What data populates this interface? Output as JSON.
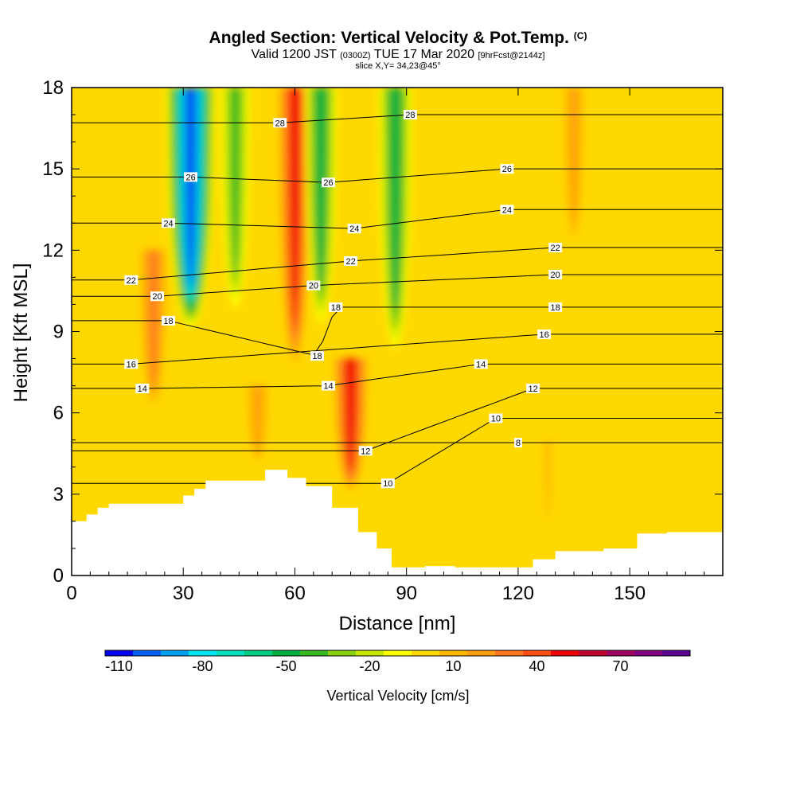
{
  "header": {
    "title": "Angled Section: Vertical Velocity & Pot.Temp.",
    "title_unit": "(C)",
    "valid_prefix": "Valid 1200 JST",
    "valid_utc": "(0300Z)",
    "valid_date": "TUE 17 Mar 2020",
    "forecast_tag": "[9hrFcst@2144z]",
    "slice": "slice X,Y= 34,23@45°"
  },
  "colors": {
    "terrain": "#ffffff",
    "contour_line": "#000000",
    "scale": [
      "#0000ee",
      "#005ef0",
      "#00a0f0",
      "#00e6f0",
      "#00e0c0",
      "#00cc80",
      "#00b040",
      "#38b820",
      "#88d010",
      "#c8e800",
      "#ffff00",
      "#ffd800",
      "#ffb800",
      "#ff9c10",
      "#ff7820",
      "#ff4c10",
      "#ee0000",
      "#c00030",
      "#a00060",
      "#800080",
      "#5a0090"
    ]
  },
  "chart_data": {
    "type": "heatmap",
    "title": "Angled Section: Vertical Velocity & Pot.Temp.",
    "xlabel": "Distance [nm]",
    "ylabel": "Height [Kft MSL]",
    "xlim": [
      0,
      175
    ],
    "ylim": [
      0,
      18
    ],
    "x_ticks": [
      0,
      30,
      60,
      90,
      120,
      150
    ],
    "y_ticks": [
      0,
      3,
      6,
      9,
      12,
      15,
      18
    ],
    "colorbar": {
      "label": "Vertical Velocity [cm/s]",
      "min": -115,
      "max": 95,
      "step": 10,
      "tick_values": [
        -110,
        -80,
        -50,
        -20,
        10,
        40,
        70
      ]
    },
    "terrain_profile": {
      "x": [
        0,
        4,
        4,
        7,
        7,
        10,
        10,
        30,
        30,
        33,
        33,
        36,
        36,
        52,
        52,
        58,
        58,
        63,
        63,
        70,
        70,
        77,
        77,
        82,
        82,
        86,
        86,
        95,
        95,
        103,
        103,
        124,
        124,
        130,
        130,
        143,
        143,
        152,
        152,
        160,
        160,
        175
      ],
      "y": [
        2.0,
        2.0,
        2.25,
        2.25,
        2.5,
        2.5,
        2.65,
        2.65,
        2.95,
        2.95,
        3.2,
        3.2,
        3.5,
        3.5,
        3.9,
        3.9,
        3.6,
        3.6,
        3.3,
        3.3,
        2.5,
        2.5,
        1.6,
        1.6,
        1.0,
        1.0,
        0.3,
        0.3,
        0.35,
        0.35,
        0.3,
        0.3,
        0.6,
        0.6,
        0.9,
        0.9,
        1.0,
        1.0,
        1.55,
        1.55,
        1.6,
        1.6
      ]
    },
    "vertical_velocity_features": [
      {
        "x_center": 32,
        "y_base": 9.0,
        "y_top": 18,
        "value": -100
      },
      {
        "x_center": 44,
        "y_base": 9.5,
        "y_top": 18,
        "value": -40
      },
      {
        "x_center": 60,
        "y_base": 7.5,
        "y_top": 18,
        "value": 45
      },
      {
        "x_center": 67,
        "y_base": 9.0,
        "y_top": 18,
        "value": -45
      },
      {
        "x_center": 75,
        "y_base": 3.0,
        "y_top": 8.0,
        "value": 50
      },
      {
        "x_center": 87,
        "y_base": 8.0,
        "y_top": 18,
        "value": -50
      },
      {
        "x_center": 22,
        "y_base": 6.0,
        "y_top": 12.0,
        "value": 30
      },
      {
        "x_center": 50,
        "y_base": 4.0,
        "y_top": 7.0,
        "value": 20
      },
      {
        "x_center": 128,
        "y_base": 1.5,
        "y_top": 5.0,
        "value": 5
      },
      {
        "x_center": 135,
        "y_base": 12.0,
        "y_top": 18.0,
        "value": 15
      }
    ],
    "contour_labels": [
      {
        "text": "28",
        "x": 56,
        "y": 16.7
      },
      {
        "text": "28",
        "x": 91,
        "y": 17.0
      },
      {
        "text": "26",
        "x": 32,
        "y": 14.7
      },
      {
        "text": "26",
        "x": 69,
        "y": 14.5
      },
      {
        "text": "26",
        "x": 117,
        "y": 15.0
      },
      {
        "text": "24",
        "x": 26,
        "y": 13.0
      },
      {
        "text": "24",
        "x": 76,
        "y": 12.8
      },
      {
        "text": "24",
        "x": 117,
        "y": 13.5
      },
      {
        "text": "22",
        "x": 16,
        "y": 10.9
      },
      {
        "text": "22",
        "x": 75,
        "y": 11.6
      },
      {
        "text": "22",
        "x": 130,
        "y": 12.1
      },
      {
        "text": "20",
        "x": 23,
        "y": 10.3
      },
      {
        "text": "20",
        "x": 65,
        "y": 10.7
      },
      {
        "text": "20",
        "x": 130,
        "y": 11.1
      },
      {
        "text": "18",
        "x": 26,
        "y": 9.4
      },
      {
        "text": "18",
        "x": 71,
        "y": 9.9
      },
      {
        "text": "18",
        "x": 130,
        "y": 9.9
      },
      {
        "text": "18",
        "x": 66,
        "y": 8.1
      },
      {
        "text": "16",
        "x": 16,
        "y": 7.8
      },
      {
        "text": "16",
        "x": 127,
        "y": 8.9
      },
      {
        "text": "14",
        "x": 19,
        "y": 6.9
      },
      {
        "text": "14",
        "x": 69,
        "y": 7.0
      },
      {
        "text": "14",
        "x": 110,
        "y": 7.8
      },
      {
        "text": "12",
        "x": 79,
        "y": 4.6
      },
      {
        "text": "12",
        "x": 124,
        "y": 6.9
      },
      {
        "text": "10",
        "x": 85,
        "y": 3.4
      },
      {
        "text": "10",
        "x": 114,
        "y": 5.8
      },
      {
        "text": "8",
        "x": 120,
        "y": 4.9
      }
    ]
  }
}
